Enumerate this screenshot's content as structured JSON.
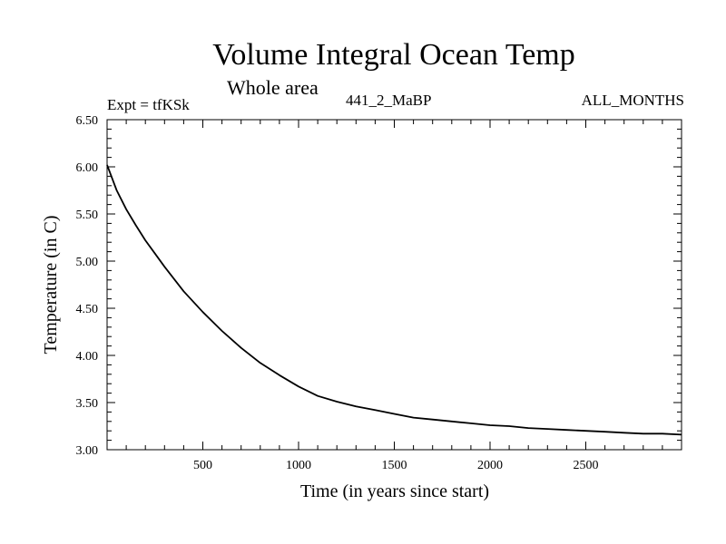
{
  "chart_data": {
    "type": "line",
    "title": "Volume Integral Ocean Temp",
    "subtitle": "Whole area",
    "annotations": {
      "experiment": "Expt = tfKSk",
      "run": "441_2_MaBP",
      "period": "ALL_MONTHS"
    },
    "xlabel": "Time (in years since start)",
    "ylabel": "Temperature (in C)",
    "xlim": [
      0,
      3000
    ],
    "ylim": [
      3.0,
      6.5
    ],
    "xticks": [
      500,
      1000,
      1500,
      2000,
      2500
    ],
    "xtick_labels": [
      "500",
      "1000",
      "1500",
      "2000",
      "2500"
    ],
    "yticks": [
      3.0,
      3.5,
      4.0,
      4.5,
      5.0,
      5.5,
      6.0,
      6.5
    ],
    "ytick_labels": [
      "3.00",
      "3.50",
      "4.00",
      "4.50",
      "5.00",
      "5.50",
      "6.00",
      "6.50"
    ],
    "series": [
      {
        "name": "Volume Integral Ocean Temp",
        "color": "#000000",
        "x": [
          0,
          50,
          100,
          150,
          200,
          250,
          300,
          400,
          500,
          600,
          700,
          800,
          900,
          1000,
          1100,
          1200,
          1300,
          1400,
          1500,
          1600,
          1700,
          1800,
          1900,
          2000,
          2100,
          2200,
          2300,
          2400,
          2500,
          2600,
          2700,
          2800,
          2900,
          3000
        ],
        "y": [
          6.02,
          5.75,
          5.55,
          5.38,
          5.22,
          5.08,
          4.94,
          4.68,
          4.46,
          4.26,
          4.08,
          3.92,
          3.79,
          3.67,
          3.57,
          3.51,
          3.46,
          3.42,
          3.38,
          3.34,
          3.32,
          3.3,
          3.28,
          3.26,
          3.25,
          3.23,
          3.22,
          3.21,
          3.2,
          3.19,
          3.18,
          3.17,
          3.17,
          3.16
        ]
      }
    ]
  }
}
